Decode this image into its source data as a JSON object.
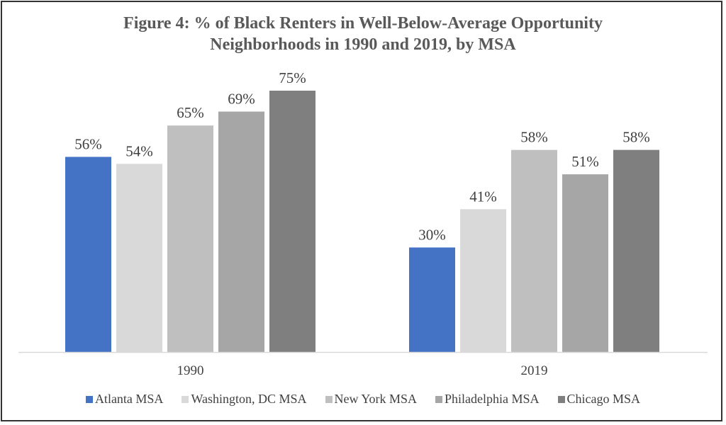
{
  "chart_data": {
    "type": "bar",
    "title": "Figure 4: % of Black Renters in Well-Below-Average Opportunity Neighborhoods in 1990 and 2019, by MSA",
    "title_lines": [
      "Figure 4: % of Black Renters in Well-Below-Average Opportunity",
      "Neighborhoods in 1990 and 2019, by MSA"
    ],
    "categories": [
      "1990",
      "2019"
    ],
    "series": [
      {
        "name": "Atlanta MSA",
        "color": "#4472C4",
        "values": [
          56,
          30
        ],
        "labels": [
          "56%",
          "30%"
        ]
      },
      {
        "name": "Washington, DC MSA",
        "color": "#D9D9D9",
        "values": [
          54,
          41
        ],
        "labels": [
          "54%",
          "41%"
        ]
      },
      {
        "name": "New York MSA",
        "color": "#BFBFBF",
        "values": [
          65,
          58
        ],
        "labels": [
          "65%",
          "58%"
        ]
      },
      {
        "name": "Philadelphia MSA",
        "color": "#A6A6A6",
        "values": [
          69,
          51
        ],
        "labels": [
          "69%",
          "51%"
        ]
      },
      {
        "name": "Chicago MSA",
        "color": "#7F7F7F",
        "values": [
          75,
          58
        ],
        "labels": [
          "75%",
          "58%"
        ]
      }
    ],
    "xlabel": "",
    "ylabel": "",
    "ylim": [
      0,
      80
    ],
    "grid": false,
    "legend": "bottom",
    "data_labels": true
  }
}
